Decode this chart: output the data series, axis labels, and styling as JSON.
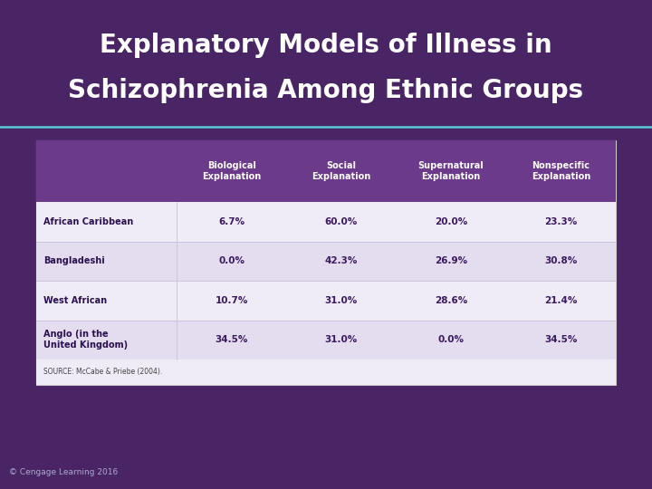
{
  "title_line1": "Explanatory Models of Illness in",
  "title_line2": "Schizophrenia Among Ethnic Groups",
  "title_color": "#ffffff",
  "title_fontsize": 20,
  "bg_color_top": "#3d2055",
  "bg_color": "#4a2565",
  "header_bg": "#6b3a8a",
  "header_text_color": "#ffffff",
  "row_colors": [
    "#f0ecf7",
    "#e4ddf0",
    "#f0ecf7",
    "#e4ddf0"
  ],
  "source_row_color": "#f0ecf7",
  "table_bg": "#f0ecf7",
  "col_headers": [
    "Biological\nExplanation",
    "Social\nExplanation",
    "Supernatural\nExplanation",
    "Nonspecific\nExplanation"
  ],
  "row_labels": [
    "African Caribbean",
    "Bangladeshi",
    "West African",
    "Anglo (in the\nUnited Kingdom)"
  ],
  "data": [
    [
      "6.7%",
      "60.0%",
      "20.0%",
      "23.3%"
    ],
    [
      "0.0%",
      "42.3%",
      "26.9%",
      "30.8%"
    ],
    [
      "10.7%",
      "31.0%",
      "28.6%",
      "21.4%"
    ],
    [
      "34.5%",
      "31.0%",
      "0.0%",
      "34.5%"
    ]
  ],
  "source_text": "SOURCE: McCabe & Priebe (2004).",
  "copyright_text": "© Cengage Learning 2016",
  "accent_color": "#c0105a",
  "title_underline_color": "#5bc8d4",
  "cell_text_color": "#3a1a60",
  "row_label_color": "#2a1050",
  "divider_color": "#c8c0d8",
  "table_border_color": "#cccccc"
}
